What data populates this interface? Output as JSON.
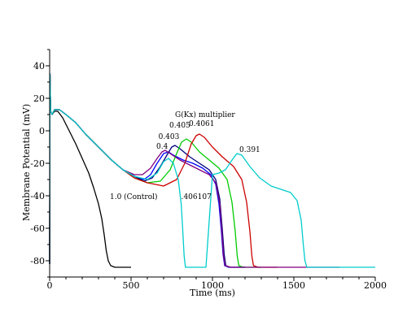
{
  "chart_data": {
    "type": "line",
    "title": "",
    "xlabel": "Time (ms)",
    "ylabel": "Membrane Potential (mV)",
    "xlim": [
      0,
      2000
    ],
    "ylim": [
      -90,
      50
    ],
    "xticks": [
      0,
      500,
      1000,
      1500,
      2000
    ],
    "yticks": [
      -80,
      -60,
      -40,
      -20,
      0,
      20,
      40
    ],
    "grid": false,
    "legend_title": "G(Kx) multiplier",
    "series": [
      {
        "name": "1.0 (Control)",
        "color": "#000000",
        "label_at": [
          370,
          -42
        ],
        "points": [
          [
            0,
            -82
          ],
          [
            2,
            35
          ],
          [
            6,
            12
          ],
          [
            15,
            10
          ],
          [
            30,
            12
          ],
          [
            50,
            12
          ],
          [
            80,
            8
          ],
          [
            120,
            0
          ],
          [
            160,
            -8
          ],
          [
            200,
            -17
          ],
          [
            240,
            -26
          ],
          [
            270,
            -35
          ],
          [
            300,
            -45
          ],
          [
            320,
            -54
          ],
          [
            335,
            -64
          ],
          [
            348,
            -74
          ],
          [
            360,
            -80
          ],
          [
            375,
            -83
          ],
          [
            400,
            -84
          ],
          [
            500,
            -84
          ]
        ]
      },
      {
        "name": "0.4",
        "color": "#0000ff",
        "label_at": [
          655,
          -11
        ],
        "points": [
          [
            0,
            -82
          ],
          [
            2,
            35
          ],
          [
            6,
            12
          ],
          [
            15,
            10
          ],
          [
            30,
            13
          ],
          [
            60,
            13
          ],
          [
            100,
            10
          ],
          [
            160,
            5
          ],
          [
            220,
            -2
          ],
          [
            300,
            -10
          ],
          [
            380,
            -18
          ],
          [
            450,
            -24
          ],
          [
            520,
            -28
          ],
          [
            580,
            -30
          ],
          [
            620,
            -27
          ],
          [
            660,
            -20
          ],
          [
            700,
            -14
          ],
          [
            730,
            -13
          ],
          [
            760,
            -15
          ],
          [
            820,
            -18
          ],
          [
            880,
            -20
          ],
          [
            940,
            -23
          ],
          [
            990,
            -27
          ],
          [
            1020,
            -33
          ],
          [
            1040,
            -45
          ],
          [
            1055,
            -62
          ],
          [
            1065,
            -76
          ],
          [
            1075,
            -83
          ],
          [
            1100,
            -84
          ],
          [
            1200,
            -84
          ]
        ]
      },
      {
        "name": "0.403",
        "color": "#000080",
        "label_at": [
          668,
          -5
        ],
        "points": [
          [
            0,
            -82
          ],
          [
            2,
            35
          ],
          [
            6,
            12
          ],
          [
            15,
            10
          ],
          [
            30,
            13
          ],
          [
            60,
            13
          ],
          [
            100,
            10
          ],
          [
            160,
            5
          ],
          [
            220,
            -2
          ],
          [
            300,
            -10
          ],
          [
            380,
            -18
          ],
          [
            450,
            -24
          ],
          [
            520,
            -28
          ],
          [
            580,
            -31
          ],
          [
            630,
            -29
          ],
          [
            680,
            -22
          ],
          [
            720,
            -15
          ],
          [
            750,
            -10
          ],
          [
            770,
            -9
          ],
          [
            800,
            -11
          ],
          [
            860,
            -16
          ],
          [
            920,
            -20
          ],
          [
            980,
            -24
          ],
          [
            1020,
            -30
          ],
          [
            1045,
            -42
          ],
          [
            1060,
            -60
          ],
          [
            1072,
            -76
          ],
          [
            1082,
            -83
          ],
          [
            1110,
            -84
          ],
          [
            1200,
            -84
          ]
        ]
      },
      {
        "name": "0.405",
        "color": "#00cc00",
        "label_at": [
          735,
          2
        ],
        "points": [
          [
            0,
            -82
          ],
          [
            2,
            35
          ],
          [
            6,
            12
          ],
          [
            15,
            10
          ],
          [
            30,
            13
          ],
          [
            60,
            13
          ],
          [
            100,
            10
          ],
          [
            160,
            5
          ],
          [
            220,
            -2
          ],
          [
            300,
            -10
          ],
          [
            380,
            -18
          ],
          [
            450,
            -24
          ],
          [
            520,
            -29
          ],
          [
            600,
            -32
          ],
          [
            680,
            -31
          ],
          [
            740,
            -24
          ],
          [
            780,
            -14
          ],
          [
            810,
            -7
          ],
          [
            840,
            -5
          ],
          [
            870,
            -7
          ],
          [
            920,
            -13
          ],
          [
            980,
            -18
          ],
          [
            1040,
            -23
          ],
          [
            1090,
            -30
          ],
          [
            1120,
            -44
          ],
          [
            1140,
            -62
          ],
          [
            1152,
            -77
          ],
          [
            1162,
            -83
          ],
          [
            1190,
            -84
          ],
          [
            1300,
            -84
          ]
        ]
      },
      {
        "name": "0.4061",
        "color": "#cc0000",
        "label_at": [
          855,
          3
        ],
        "points": [
          [
            0,
            -82
          ],
          [
            2,
            35
          ],
          [
            6,
            12
          ],
          [
            15,
            10
          ],
          [
            30,
            13
          ],
          [
            60,
            13
          ],
          [
            100,
            10
          ],
          [
            160,
            5
          ],
          [
            220,
            -2
          ],
          [
            300,
            -10
          ],
          [
            380,
            -18
          ],
          [
            450,
            -24
          ],
          [
            520,
            -29
          ],
          [
            600,
            -32
          ],
          [
            700,
            -34
          ],
          [
            780,
            -30
          ],
          [
            830,
            -20
          ],
          [
            870,
            -8
          ],
          [
            900,
            -3
          ],
          [
            920,
            -2
          ],
          [
            950,
            -4
          ],
          [
            1000,
            -10
          ],
          [
            1060,
            -16
          ],
          [
            1130,
            -22
          ],
          [
            1180,
            -30
          ],
          [
            1210,
            -44
          ],
          [
            1230,
            -62
          ],
          [
            1242,
            -77
          ],
          [
            1252,
            -83
          ],
          [
            1280,
            -84
          ],
          [
            1400,
            -84
          ]
        ]
      },
      {
        "name": "0.391",
        "color": "#800080",
        "label_at": [
          1165,
          -13
        ],
        "points": [
          [
            0,
            -82
          ],
          [
            2,
            35
          ],
          [
            6,
            12
          ],
          [
            15,
            10
          ],
          [
            30,
            13
          ],
          [
            60,
            13
          ],
          [
            100,
            10
          ],
          [
            160,
            5
          ],
          [
            220,
            -2
          ],
          [
            300,
            -10
          ],
          [
            380,
            -18
          ],
          [
            450,
            -24
          ],
          [
            520,
            -27
          ],
          [
            570,
            -27
          ],
          [
            620,
            -23
          ],
          [
            660,
            -17
          ],
          [
            690,
            -13
          ],
          [
            710,
            -12
          ],
          [
            740,
            -14
          ],
          [
            800,
            -18
          ],
          [
            860,
            -21
          ],
          [
            920,
            -24
          ],
          [
            980,
            -27
          ],
          [
            1020,
            -32
          ],
          [
            1045,
            -45
          ],
          [
            1058,
            -62
          ],
          [
            1068,
            -77
          ],
          [
            1078,
            -83
          ],
          [
            1110,
            -84
          ],
          [
            1780,
            -84
          ]
        ]
      },
      {
        "name": ".406107",
        "color": "#00cccc",
        "label_at": [
          808,
          -42
        ],
        "points": [
          [
            0,
            -82
          ],
          [
            2,
            35
          ],
          [
            6,
            12
          ],
          [
            15,
            10
          ],
          [
            30,
            13
          ],
          [
            60,
            13
          ],
          [
            100,
            10
          ],
          [
            160,
            5
          ],
          [
            220,
            -2
          ],
          [
            300,
            -10
          ],
          [
            380,
            -18
          ],
          [
            450,
            -24
          ],
          [
            520,
            -28
          ],
          [
            600,
            -30
          ],
          [
            660,
            -26
          ],
          [
            700,
            -19
          ],
          [
            730,
            -17
          ],
          [
            760,
            -20
          ],
          [
            790,
            -30
          ],
          [
            808,
            -45
          ],
          [
            818,
            -62
          ],
          [
            826,
            -77
          ],
          [
            834,
            -84
          ],
          [
            880,
            -84
          ],
          [
            960,
            -84
          ],
          [
            1000,
            -27
          ],
          [
            1040,
            -26
          ],
          [
            1080,
            -24
          ],
          [
            1120,
            -18
          ],
          [
            1150,
            -14
          ],
          [
            1180,
            -15
          ],
          [
            1230,
            -22
          ],
          [
            1290,
            -29
          ],
          [
            1360,
            -34
          ],
          [
            1420,
            -36
          ],
          [
            1480,
            -38
          ],
          [
            1520,
            -43
          ],
          [
            1545,
            -55
          ],
          [
            1558,
            -70
          ],
          [
            1568,
            -80
          ],
          [
            1580,
            -84
          ],
          [
            1650,
            -84
          ],
          [
            2000,
            -84
          ]
        ]
      }
    ]
  }
}
